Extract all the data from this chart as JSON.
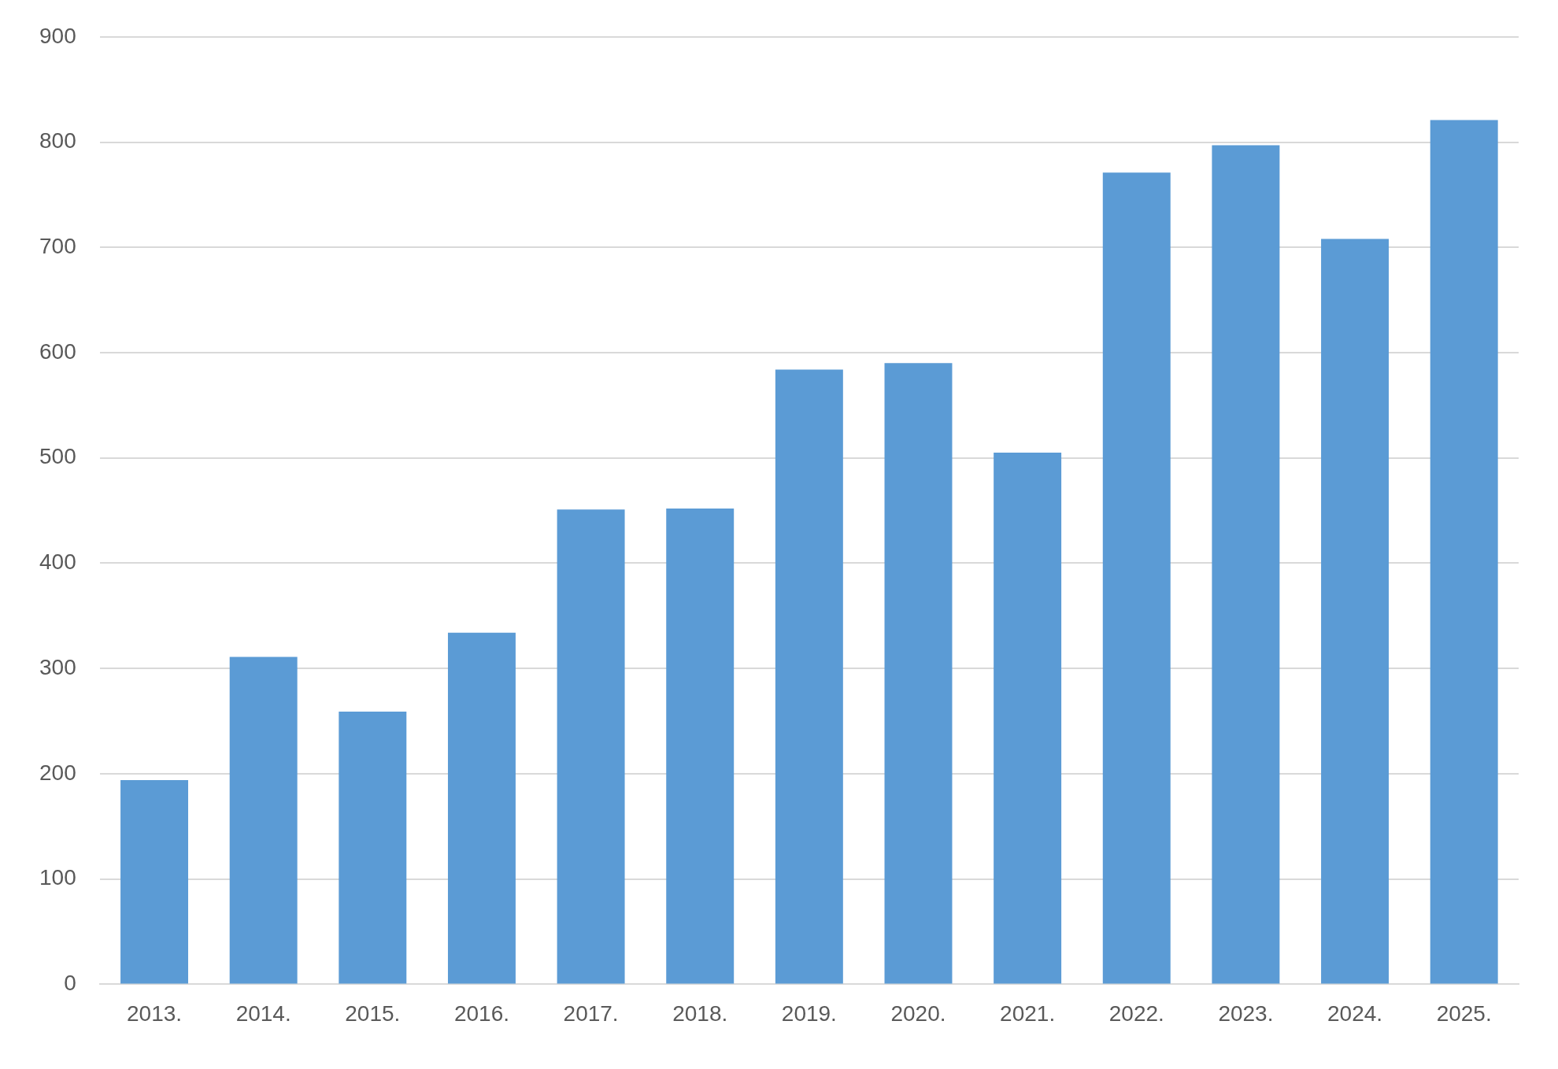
{
  "chart_data": {
    "type": "bar",
    "categories": [
      "2013.",
      "2014.",
      "2015.",
      "2016.",
      "2017.",
      "2018.",
      "2019.",
      "2020.",
      "2021.",
      "2022.",
      "2023.",
      "2024.",
      "2025."
    ],
    "values": [
      194,
      311,
      259,
      334,
      451,
      452,
      584,
      590,
      505,
      771,
      797,
      708,
      821
    ],
    "color": "#5b9bd5",
    "ylim": [
      0,
      900
    ],
    "yticks": [
      0,
      100,
      200,
      300,
      400,
      500,
      600,
      700,
      800,
      900
    ],
    "grid": "y"
  }
}
